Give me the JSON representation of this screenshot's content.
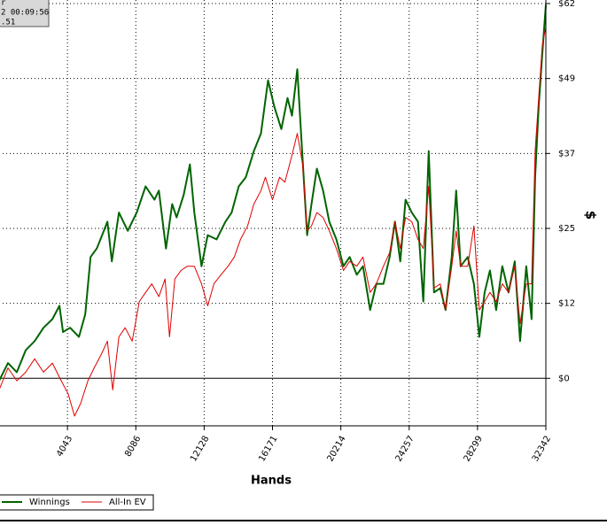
{
  "chart_data": {
    "type": "line",
    "x_label": "Hands",
    "y_label": "$",
    "annotations": [
      "r",
      "2 00:09:56",
      ".51"
    ],
    "xlim": [
      0,
      32342
    ],
    "xticks": [
      4043,
      8086,
      12128,
      16171,
      20214,
      24257,
      28299,
      32342
    ],
    "ylim": [
      -7.8,
      61.5
    ],
    "yticks": [
      {
        "value": 0,
        "label": "$0"
      },
      {
        "value": 12.3,
        "label": "$12"
      },
      {
        "value": 24.6,
        "label": "$25"
      },
      {
        "value": 36.9,
        "label": "$37"
      },
      {
        "value": 49.2,
        "label": "$49"
      },
      {
        "value": 61.5,
        "label": "$62"
      }
    ],
    "grid": true,
    "legend": "bottom-left",
    "series": [
      {
        "name": "Winnings",
        "color": "#006400",
        "x": [
          0,
          525,
          1050,
          1575,
          2100,
          2625,
          3150,
          3570,
          3780,
          4200,
          4725,
          5093,
          5408,
          5775,
          6195,
          6405,
          6668,
          7088,
          7613,
          8138,
          8663,
          9188,
          9450,
          9870,
          10238,
          10500,
          10920,
          11288,
          11550,
          11970,
          12338,
          12863,
          13388,
          13755,
          14175,
          14595,
          15068,
          15488,
          15908,
          16275,
          16695,
          17063,
          17325,
          17640,
          17955,
          18218,
          18480,
          18795,
          19163,
          19530,
          19950,
          20370,
          20738,
          21158,
          21525,
          21945,
          22313,
          22733,
          23100,
          23415,
          23730,
          24045,
          24413,
          24780,
          25095,
          25410,
          25725,
          26093,
          26408,
          26775,
          27038,
          27300,
          27720,
          28088,
          28403,
          28718,
          29033,
          29400,
          29768,
          30135,
          30503,
          30818,
          31185,
          31500,
          31710,
          31920,
          32130,
          32342
        ],
        "values": [
          -0.4,
          2.5,
          1.0,
          4.6,
          6.1,
          8.3,
          9.7,
          11.9,
          7.6,
          8.3,
          6.8,
          10.5,
          19.9,
          21.3,
          24.2,
          25.7,
          19.2,
          27.2,
          24.2,
          27.2,
          31.5,
          29.3,
          30.8,
          21.3,
          28.6,
          26.4,
          30.1,
          35.1,
          27.2,
          18.4,
          23.5,
          22.8,
          25.7,
          27.2,
          31.5,
          33.0,
          37.3,
          40.2,
          48.9,
          44.6,
          40.9,
          46.0,
          43.1,
          50.7,
          35.9,
          23.5,
          28.6,
          34.4,
          30.8,
          25.7,
          22.8,
          18.4,
          19.9,
          17.0,
          18.4,
          11.2,
          15.5,
          15.5,
          19.9,
          25.7,
          19.2,
          29.3,
          27.2,
          25.7,
          12.6,
          37.3,
          14.1,
          14.8,
          11.2,
          19.9,
          30.8,
          18.4,
          19.9,
          15.5,
          6.8,
          14.1,
          17.7,
          11.2,
          18.4,
          14.1,
          19.2,
          6.1,
          18.4,
          9.7,
          33.0,
          44.6,
          53.3,
          61.3
        ]
      },
      {
        "name": "All-In EV",
        "color": "#e00000",
        "x": [
          0,
          525,
          1050,
          1575,
          2100,
          2625,
          3150,
          3675,
          4095,
          4463,
          4830,
          5250,
          5618,
          6038,
          6405,
          6720,
          7088,
          7455,
          7875,
          8295,
          8663,
          9030,
          9450,
          9818,
          10080,
          10395,
          10763,
          11130,
          11550,
          11970,
          12338,
          12705,
          13125,
          13545,
          13913,
          14280,
          14700,
          15068,
          15488,
          15750,
          16170,
          16590,
          16905,
          17325,
          17640,
          17955,
          18218,
          18480,
          18795,
          19163,
          19530,
          19950,
          20370,
          20738,
          21158,
          21525,
          21945,
          22313,
          22733,
          23100,
          23415,
          23730,
          24045,
          24413,
          24780,
          25095,
          25410,
          25725,
          26093,
          26408,
          26775,
          27038,
          27300,
          27720,
          28088,
          28403,
          28718,
          29033,
          29400,
          29768,
          30135,
          30503,
          30818,
          31185,
          31500,
          31710,
          31920,
          32130,
          32342
        ],
        "values": [
          -1.9,
          1.7,
          -0.4,
          1.0,
          3.2,
          1.0,
          2.5,
          -0.4,
          -2.6,
          -6.2,
          -4.1,
          -0.4,
          1.7,
          3.9,
          6.1,
          -1.9,
          6.8,
          8.3,
          6.1,
          12.6,
          14.1,
          15.5,
          13.4,
          16.3,
          6.8,
          16.3,
          17.7,
          18.4,
          18.4,
          15.5,
          11.9,
          15.5,
          17.0,
          18.4,
          19.9,
          22.8,
          25.0,
          28.6,
          30.8,
          33.0,
          29.3,
          33.0,
          32.2,
          36.6,
          40.2,
          35.1,
          24.2,
          25.0,
          27.2,
          26.4,
          24.2,
          21.3,
          17.7,
          19.2,
          18.4,
          19.9,
          14.1,
          15.5,
          18.4,
          20.6,
          25.7,
          21.3,
          26.4,
          25.7,
          22.8,
          21.3,
          31.5,
          14.8,
          15.5,
          11.2,
          18.4,
          24.2,
          18.4,
          18.4,
          25.0,
          11.2,
          12.6,
          14.1,
          12.6,
          15.5,
          14.1,
          18.4,
          9.0,
          15.5,
          15.5,
          37.3,
          46.0,
          54.7,
          57.6
        ]
      }
    ]
  }
}
